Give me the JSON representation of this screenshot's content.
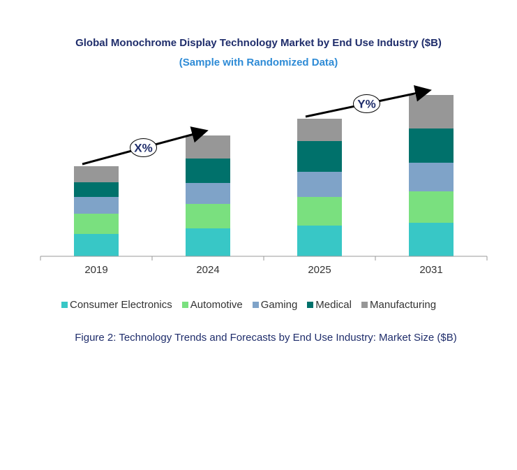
{
  "chart_data": {
    "type": "bar",
    "stacked": true,
    "title": "Global Monochrome Display Technology Market by End Use Industry ($B)",
    "subtitle": "(Sample with Randomized Data)",
    "caption": "Figure 2: Technology Trends and Forecasts by End Use Industry:  Market Size ($B)",
    "categories": [
      "2019",
      "2024",
      "2025",
      "2031"
    ],
    "series": [
      {
        "name": "Consumer Electronics",
        "color": "#38c7c6",
        "values": [
          3.2,
          4.0,
          4.4,
          4.8
        ]
      },
      {
        "name": "Automotive",
        "color": "#7ae07f",
        "values": [
          2.9,
          3.5,
          4.1,
          4.5
        ]
      },
      {
        "name": "Gaming",
        "color": "#7fa3c8",
        "values": [
          2.4,
          3.0,
          3.6,
          4.1
        ]
      },
      {
        "name": "Medical",
        "color": "#00716b",
        "values": [
          2.1,
          3.5,
          4.4,
          4.9
        ]
      },
      {
        "name": "Manufacturing",
        "color": "#979797",
        "values": [
          2.3,
          3.3,
          3.2,
          4.8
        ]
      }
    ],
    "annotations": [
      {
        "label": "X%",
        "from": "2019",
        "to": "2024"
      },
      {
        "label": "Y%",
        "from": "2025",
        "to": "2031"
      }
    ],
    "yaxis_visible": false,
    "grid": false,
    "legend": "bottom"
  }
}
